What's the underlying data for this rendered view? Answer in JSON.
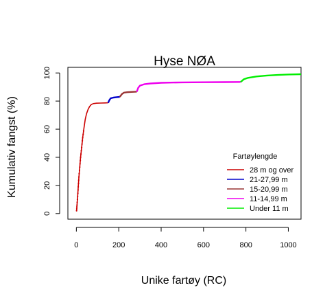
{
  "chart_data": {
    "type": "line",
    "title": "Hyse NØA",
    "xlabel": "Unike fartøy (RC)",
    "ylabel": "Kumulativ fangst (%)",
    "xlim": [
      -40,
      1060
    ],
    "ylim": [
      -4,
      104
    ],
    "xticks": [
      0,
      200,
      400,
      600,
      800,
      1000
    ],
    "xtick_labels": [
      "0",
      "200",
      "400",
      "600",
      "800",
      "1000"
    ],
    "yticks": [
      0,
      20,
      40,
      60,
      80,
      100
    ],
    "ytick_labels": [
      "0",
      "20",
      "40",
      "60",
      "80",
      "100"
    ],
    "grid": false,
    "legend": {
      "title": "Fartøylengde",
      "position": "bottom-right"
    },
    "series": [
      {
        "name": "28 m og over",
        "color": "#cc0000",
        "points": [
          [
            1,
            2
          ],
          [
            3,
            6
          ],
          [
            6,
            12
          ],
          [
            9,
            19
          ],
          [
            12,
            26
          ],
          [
            16,
            33
          ],
          [
            20,
            40
          ],
          [
            25,
            47
          ],
          [
            30,
            54
          ],
          [
            36,
            61
          ],
          [
            42,
            67
          ],
          [
            48,
            71
          ],
          [
            55,
            74
          ],
          [
            62,
            76
          ],
          [
            70,
            77.5
          ],
          [
            80,
            78.2
          ],
          [
            95,
            78.5
          ],
          [
            115,
            78.6
          ],
          [
            135,
            78.7
          ],
          [
            150,
            78.8
          ]
        ]
      },
      {
        "name": "21-27,99 m",
        "color": "#0000cc",
        "points": [
          [
            150,
            78.8
          ],
          [
            155,
            80.5
          ],
          [
            162,
            82
          ],
          [
            175,
            82.5
          ],
          [
            190,
            82.8
          ],
          [
            205,
            83
          ]
        ]
      },
      {
        "name": "15-20,99 m",
        "color": "#993333",
        "points": [
          [
            205,
            83
          ],
          [
            215,
            85
          ],
          [
            225,
            86
          ],
          [
            240,
            86.3
          ],
          [
            260,
            86.5
          ],
          [
            285,
            86.7
          ]
        ]
      },
      {
        "name": "11-14,99 m",
        "color": "#ee00ee",
        "points": [
          [
            285,
            86.7
          ],
          [
            292,
            89.5
          ],
          [
            300,
            91
          ],
          [
            320,
            92
          ],
          [
            350,
            92.5
          ],
          [
            400,
            93
          ],
          [
            500,
            93.3
          ],
          [
            600,
            93.4
          ],
          [
            700,
            93.5
          ],
          [
            775,
            93.6
          ]
        ]
      },
      {
        "name": "Under 11 m",
        "color": "#00ee00",
        "points": [
          [
            775,
            93.6
          ],
          [
            790,
            95.5
          ],
          [
            810,
            96.5
          ],
          [
            850,
            97.5
          ],
          [
            900,
            98.2
          ],
          [
            950,
            98.6
          ],
          [
            1000,
            98.9
          ],
          [
            1060,
            99.1
          ]
        ]
      }
    ]
  }
}
